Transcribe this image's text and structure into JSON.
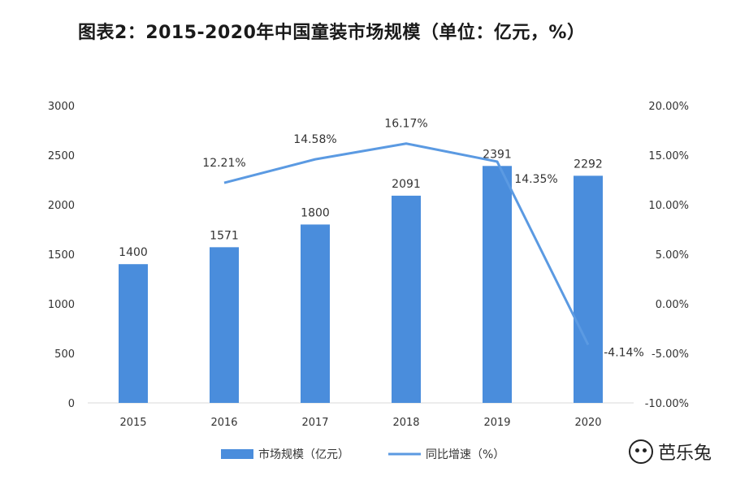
{
  "title": "图表2：2015-2020年中国童装市场规模（单位：亿元，%）",
  "watermark": "芭乐兔",
  "colors": {
    "bar": "#4a8ddc",
    "line": "#5b9ae2",
    "text": "#333333",
    "axis": "#d9d9d9"
  },
  "chart_data": {
    "type": "bar",
    "categories": [
      "2015",
      "2016",
      "2017",
      "2018",
      "2019",
      "2020"
    ],
    "series": [
      {
        "name": "市场规模（亿元）",
        "kind": "bar",
        "axis": "left",
        "values": [
          1400,
          1571,
          1800,
          2091,
          2391,
          2292
        ],
        "labels": [
          "1400",
          "1571",
          "1800",
          "2091",
          "2391",
          "2292"
        ]
      },
      {
        "name": "同比增速（%）",
        "kind": "line",
        "axis": "right",
        "values": [
          null,
          12.21,
          14.58,
          16.17,
          14.35,
          -4.14
        ],
        "labels": [
          null,
          "12.21%",
          "14.58%",
          "16.17%",
          "14.35%",
          "-4.14%"
        ]
      }
    ],
    "yleft": {
      "min": 0,
      "max": 3000,
      "ticks": [
        0,
        500,
        1000,
        1500,
        2000,
        2500,
        3000
      ]
    },
    "yright": {
      "min": -10,
      "max": 20,
      "ticks": [
        -10,
        -5,
        0,
        5,
        10,
        15,
        20
      ],
      "tick_labels": [
        "-10.00%",
        "-5.00%",
        "0.00%",
        "5.00%",
        "10.00%",
        "15.00%",
        "20.00%"
      ]
    },
    "legend": [
      "市场规模（亿元）",
      "同比增速（%）"
    ],
    "legend_position": "bottom"
  }
}
